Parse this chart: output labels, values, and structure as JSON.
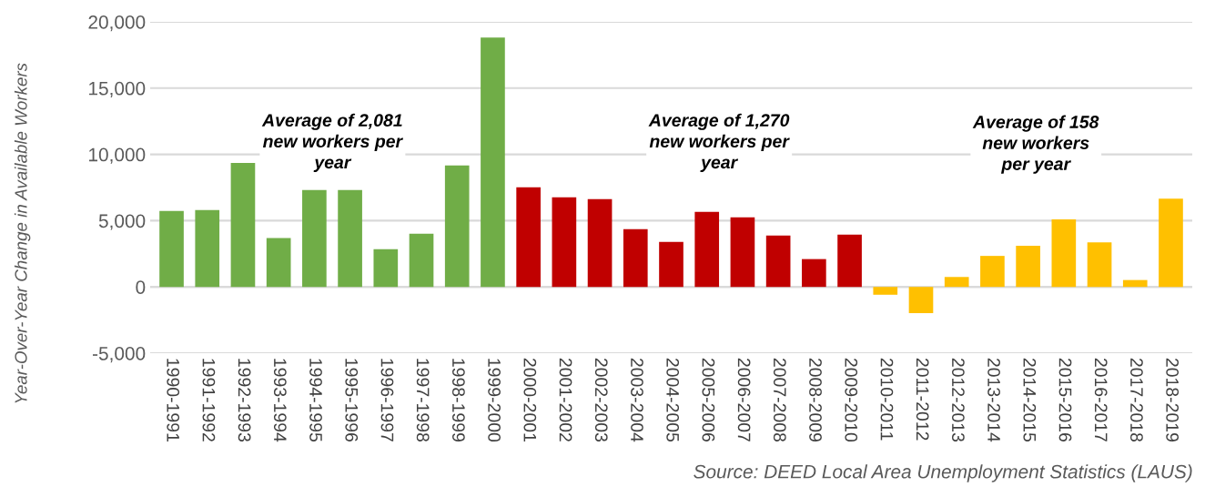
{
  "chart_data": {
    "type": "bar",
    "ylabel": "Year-Over-Year Change in Available Workers",
    "categories": [
      "1990-1991",
      "1991-1992",
      "1992-1993",
      "1993-1994",
      "1994-1995",
      "1995-1996",
      "1996-1997",
      "1997-1998",
      "1998-1999",
      "1999-2000",
      "2000-2001",
      "2001-2002",
      "2002-2003",
      "2003-2004",
      "2004-2005",
      "2005-2006",
      "2006-2007",
      "2007-2008",
      "2008-2009",
      "2009-2010",
      "2010-2011",
      "2011-2012",
      "2012-2013",
      "2013-2014",
      "2014-2015",
      "2015-2016",
      "2016-2017",
      "2017-2018",
      "2018-2019"
    ],
    "values": [
      5730,
      5800,
      9360,
      3680,
      7310,
      7310,
      2850,
      4020,
      9160,
      18810,
      7510,
      6760,
      6620,
      4360,
      3400,
      5660,
      5250,
      3880,
      2100,
      3950,
      -590,
      -1980,
      750,
      2340,
      3110,
      5090,
      3360,
      520,
      6660
    ],
    "colors": [
      "#70ad47",
      "#70ad47",
      "#70ad47",
      "#70ad47",
      "#70ad47",
      "#70ad47",
      "#70ad47",
      "#70ad47",
      "#70ad47",
      "#70ad47",
      "#c00000",
      "#c00000",
      "#c00000",
      "#c00000",
      "#c00000",
      "#c00000",
      "#c00000",
      "#c00000",
      "#c00000",
      "#c00000",
      "#ffc000",
      "#ffc000",
      "#ffc000",
      "#ffc000",
      "#ffc000",
      "#ffc000",
      "#ffc000",
      "#ffc000",
      "#ffc000"
    ],
    "ylim": [
      -5000,
      20000
    ],
    "yticks": [
      {
        "value": -5000,
        "label": "-5,000"
      },
      {
        "value": 0,
        "label": "0"
      },
      {
        "value": 5000,
        "label": "5,000"
      },
      {
        "value": 10000,
        "label": "10,000"
      },
      {
        "value": 15000,
        "label": "15,000"
      },
      {
        "value": 20000,
        "label": "20,000"
      }
    ],
    "grid": "y",
    "annotations": [
      "Average of 2,081\nnew workers per\nyear",
      "Average of 1,270\nnew workers per\nyear",
      "Average of 158\nnew workers\nper year",
      "Source: DEED Local Area Unemployment Statistics (LAUS)"
    ]
  }
}
